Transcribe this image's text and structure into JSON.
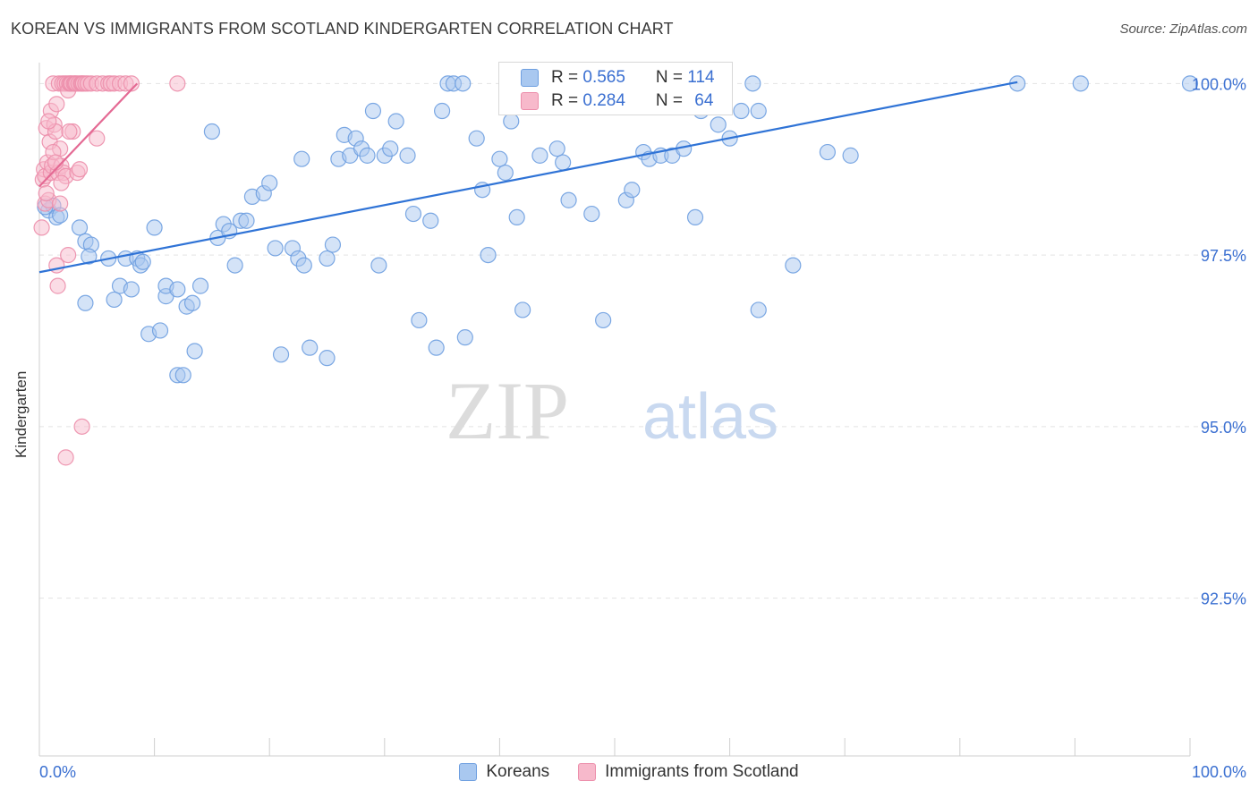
{
  "title": "KOREAN VS IMMIGRANTS FROM SCOTLAND KINDERGARTEN CORRELATION CHART",
  "source": "Source: ZipAtlas.com",
  "watermark": {
    "part1": "ZIP",
    "part2": "atlas"
  },
  "stats_box": [
    {
      "r_label": "R = ",
      "r_value": "0.565",
      "n_label": "N = ",
      "n_value": "114",
      "color": "#a9c8f0",
      "border": "#6e9fe0"
    },
    {
      "r_label": "R = ",
      "r_value": "0.284",
      "n_label": "N = ",
      "n_value": "64",
      "color": "#f7b9cb",
      "border": "#ec8eab"
    }
  ],
  "legend": [
    {
      "label": "Koreans",
      "color": "#a9c8f0",
      "border": "#6e9fe0"
    },
    {
      "label": "Immigrants from Scotland",
      "color": "#f7b9cb",
      "border": "#ec8eab"
    }
  ],
  "chart_data": {
    "type": "scatter",
    "title": "KOREAN VS IMMIGRANTS FROM SCOTLAND KINDERGARTEN CORRELATION CHART",
    "xlabel": "",
    "ylabel": "Kindergarten",
    "xlim": [
      0,
      100
    ],
    "ylim": [
      90.2,
      100.2
    ],
    "x_tick_labels": [
      {
        "value": 0,
        "label": "0.0%"
      },
      {
        "value": 100,
        "label": "100.0%"
      }
    ],
    "y_ticks": [
      {
        "value": 100.0,
        "label": "100.0%"
      },
      {
        "value": 97.5,
        "label": "97.5%"
      },
      {
        "value": 95.0,
        "label": "95.0%"
      },
      {
        "value": 92.5,
        "label": "92.5%"
      }
    ],
    "grid": true,
    "legend_position": "bottom-center",
    "series": [
      {
        "name": "Koreans",
        "color": "#a9c8f0",
        "stroke": "#6e9fe0",
        "trend": {
          "x": [
            0,
            85
          ],
          "y": [
            97.25,
            100.02
          ],
          "color": "#2f73d6"
        },
        "points": [
          [
            0.8,
            98.15
          ],
          [
            1.2,
            98.22
          ],
          [
            1.5,
            98.05
          ],
          [
            1.8,
            98.08
          ],
          [
            3.5,
            97.9
          ],
          [
            4.0,
            97.7
          ],
          [
            4.5,
            97.65
          ],
          [
            4.3,
            97.48
          ],
          [
            6.0,
            97.45
          ],
          [
            7.0,
            97.05
          ],
          [
            4.0,
            96.8
          ],
          [
            6.5,
            96.85
          ],
          [
            7.5,
            97.45
          ],
          [
            8.0,
            97.0
          ],
          [
            8.5,
            97.45
          ],
          [
            8.8,
            97.35
          ],
          [
            9.0,
            97.4
          ],
          [
            9.5,
            96.35
          ],
          [
            10.5,
            96.4
          ],
          [
            11.0,
            96.9
          ],
          [
            10.0,
            97.9
          ],
          [
            11.0,
            97.05
          ],
          [
            12.0,
            97.0
          ],
          [
            12.8,
            96.75
          ],
          [
            13.3,
            96.8
          ],
          [
            14.0,
            97.05
          ],
          [
            13.5,
            96.1
          ],
          [
            12.0,
            95.75
          ],
          [
            12.5,
            95.75
          ],
          [
            15.0,
            99.3
          ],
          [
            15.5,
            97.75
          ],
          [
            16.0,
            97.95
          ],
          [
            16.5,
            97.85
          ],
          [
            17.0,
            97.35
          ],
          [
            17.5,
            98.0
          ],
          [
            18.0,
            98.0
          ],
          [
            18.5,
            98.35
          ],
          [
            19.5,
            98.4
          ],
          [
            20.0,
            98.55
          ],
          [
            20.5,
            97.6
          ],
          [
            21.0,
            96.05
          ],
          [
            22.0,
            97.6
          ],
          [
            22.5,
            97.45
          ],
          [
            23.0,
            97.35
          ],
          [
            22.8,
            98.9
          ],
          [
            23.5,
            96.15
          ],
          [
            25.0,
            97.45
          ],
          [
            25.5,
            97.65
          ],
          [
            25.0,
            96.0
          ],
          [
            26.0,
            98.9
          ],
          [
            26.5,
            99.25
          ],
          [
            27.0,
            98.95
          ],
          [
            27.5,
            99.2
          ],
          [
            28.0,
            99.05
          ],
          [
            28.5,
            98.95
          ],
          [
            29.0,
            99.6
          ],
          [
            29.5,
            97.35
          ],
          [
            30.0,
            98.95
          ],
          [
            30.5,
            99.05
          ],
          [
            31.0,
            99.45
          ],
          [
            32.0,
            98.95
          ],
          [
            32.5,
            98.1
          ],
          [
            33.0,
            96.55
          ],
          [
            34.0,
            98.0
          ],
          [
            34.5,
            96.15
          ],
          [
            35.0,
            99.6
          ],
          [
            35.5,
            100.0
          ],
          [
            36.0,
            100.0
          ],
          [
            37.0,
            96.3
          ],
          [
            36.8,
            100.0
          ],
          [
            38.0,
            99.2
          ],
          [
            38.5,
            98.45
          ],
          [
            39.0,
            97.5
          ],
          [
            40.0,
            98.9
          ],
          [
            40.5,
            98.7
          ],
          [
            41.0,
            99.45
          ],
          [
            41.5,
            98.05
          ],
          [
            42.0,
            96.7
          ],
          [
            42.5,
            100.0
          ],
          [
            43.5,
            98.95
          ],
          [
            44.0,
            100.0
          ],
          [
            45.0,
            99.05
          ],
          [
            45.5,
            98.85
          ],
          [
            46.0,
            98.3
          ],
          [
            47.0,
            100.0
          ],
          [
            48.0,
            98.1
          ],
          [
            49.0,
            96.55
          ],
          [
            50.0,
            100.0
          ],
          [
            51.0,
            98.3
          ],
          [
            51.5,
            98.45
          ],
          [
            52.0,
            100.0
          ],
          [
            52.5,
            99.0
          ],
          [
            53.0,
            98.9
          ],
          [
            54.0,
            98.95
          ],
          [
            54.5,
            100.0
          ],
          [
            55.0,
            98.95
          ],
          [
            56.0,
            99.05
          ],
          [
            57.0,
            98.05
          ],
          [
            58.0,
            100.0
          ],
          [
            58.5,
            100.0
          ],
          [
            57.5,
            99.6
          ],
          [
            59.0,
            99.4
          ],
          [
            60.0,
            99.2
          ],
          [
            61.0,
            99.6
          ],
          [
            62.5,
            99.6
          ],
          [
            62.0,
            100.0
          ],
          [
            62.5,
            96.7
          ],
          [
            65.5,
            97.35
          ],
          [
            68.5,
            99.0
          ],
          [
            70.5,
            98.95
          ],
          [
            85.0,
            100.0
          ],
          [
            90.5,
            100.0
          ],
          [
            100.0,
            100.0
          ],
          [
            0.5,
            98.2
          ]
        ]
      },
      {
        "name": "Immigrants from Scotland",
        "color": "#f7b9cb",
        "stroke": "#ec8eab",
        "trend": {
          "x": [
            0,
            8.5
          ],
          "y": [
            98.5,
            100.0
          ],
          "color": "#e46a94"
        },
        "points": [
          [
            0.2,
            97.9
          ],
          [
            0.3,
            98.6
          ],
          [
            0.4,
            98.75
          ],
          [
            0.5,
            98.25
          ],
          [
            0.5,
            98.65
          ],
          [
            0.6,
            99.35
          ],
          [
            0.7,
            98.85
          ],
          [
            0.8,
            98.3
          ],
          [
            0.9,
            99.15
          ],
          [
            1.0,
            99.6
          ],
          [
            1.0,
            98.7
          ],
          [
            1.1,
            98.8
          ],
          [
            1.2,
            100.0
          ],
          [
            1.3,
            99.4
          ],
          [
            1.4,
            99.3
          ],
          [
            1.5,
            99.7
          ],
          [
            1.6,
            98.7
          ],
          [
            1.7,
            100.0
          ],
          [
            1.8,
            99.05
          ],
          [
            1.8,
            98.25
          ],
          [
            1.9,
            98.8
          ],
          [
            2.0,
            100.0
          ],
          [
            2.1,
            98.7
          ],
          [
            2.2,
            100.0
          ],
          [
            2.3,
            98.65
          ],
          [
            2.4,
            100.0
          ],
          [
            2.5,
            99.9
          ],
          [
            2.6,
            100.0
          ],
          [
            2.7,
            100.0
          ],
          [
            2.8,
            100.0
          ],
          [
            2.9,
            99.3
          ],
          [
            3.0,
            100.0
          ],
          [
            3.1,
            100.0
          ],
          [
            3.2,
            100.0
          ],
          [
            3.3,
            98.7
          ],
          [
            3.4,
            100.0
          ],
          [
            3.5,
            98.75
          ],
          [
            3.6,
            100.0
          ],
          [
            3.7,
            100.0
          ],
          [
            3.8,
            100.0
          ],
          [
            4.0,
            100.0
          ],
          [
            4.2,
            100.0
          ],
          [
            4.5,
            100.0
          ],
          [
            5.0,
            100.0
          ],
          [
            5.5,
            100.0
          ],
          [
            6.0,
            100.0
          ],
          [
            6.2,
            100.0
          ],
          [
            6.5,
            100.0
          ],
          [
            7.0,
            100.0
          ],
          [
            7.5,
            100.0
          ],
          [
            8.0,
            100.0
          ],
          [
            1.6,
            97.05
          ],
          [
            2.5,
            97.5
          ],
          [
            1.5,
            97.35
          ],
          [
            3.7,
            95.0
          ],
          [
            2.3,
            94.55
          ],
          [
            5.0,
            99.2
          ],
          [
            12.0,
            100.0
          ],
          [
            0.8,
            99.45
          ],
          [
            1.2,
            99.0
          ],
          [
            2.6,
            99.3
          ],
          [
            0.6,
            98.4
          ],
          [
            1.9,
            98.55
          ],
          [
            1.4,
            98.85
          ]
        ]
      }
    ]
  }
}
